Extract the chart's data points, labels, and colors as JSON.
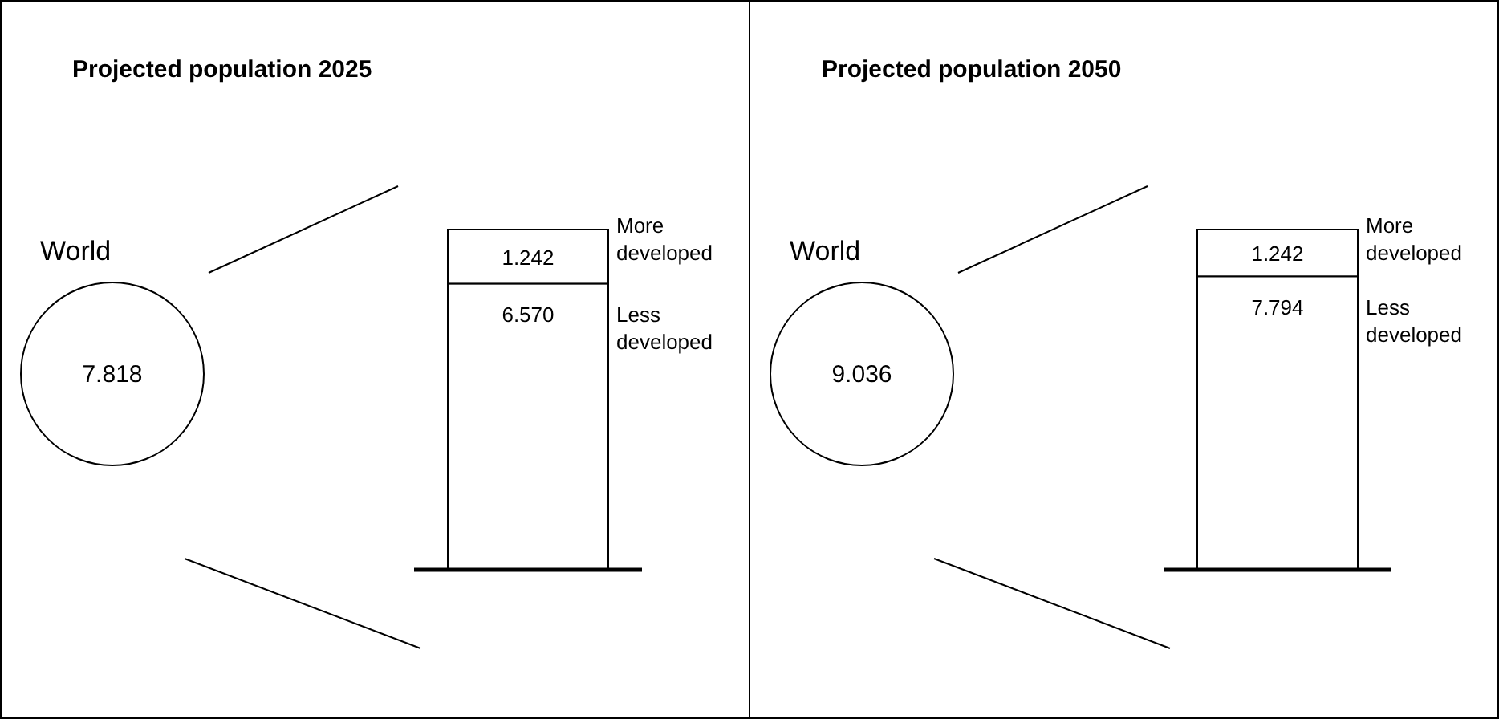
{
  "chart_data": [
    {
      "type": "pie",
      "title": "Projected population 2025",
      "categories": [
        "World"
      ],
      "values": [
        7.818
      ],
      "colors": [
        "#ffffff"
      ],
      "data_labels": true
    },
    {
      "type": "bar",
      "categories": [
        null
      ],
      "stacked": true,
      "series": [
        {
          "name": "Less developed",
          "color": "#ffffff",
          "values": [
            6.57
          ],
          "value_labels": [
            "6.570"
          ]
        },
        {
          "name": "More developed",
          "color": "#ffffff",
          "values": [
            1.242
          ],
          "value_labels": [
            "1.242"
          ]
        }
      ]
    },
    {
      "type": "pie",
      "title": "Projected population 2050",
      "categories": [
        "World"
      ],
      "values": [
        9.036
      ],
      "colors": [
        "#ffffff"
      ],
      "data_labels": true
    },
    {
      "type": "bar",
      "categories": [
        null
      ],
      "stacked": true,
      "series": [
        {
          "name": "Less developed",
          "color": "#ffffff",
          "values": [
            7.794
          ],
          "value_labels": [
            "7.794"
          ]
        },
        {
          "name": "More developed",
          "color": "#ffffff",
          "values": [
            1.242
          ],
          "value_labels": [
            "1.242"
          ]
        }
      ]
    }
  ]
}
